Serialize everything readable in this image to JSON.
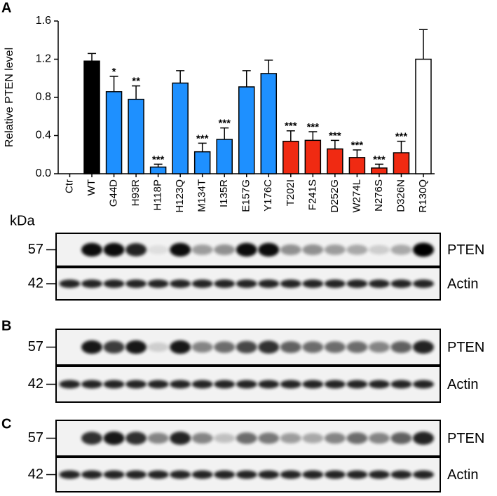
{
  "chart_data": {
    "type": "bar",
    "ylabel": "Relative PTEN level",
    "categories": [
      "Ctr",
      "WT",
      "G44D",
      "H93R",
      "H118P",
      "H123Q",
      "M134T",
      "I135R",
      "E157G",
      "Y176C",
      "T202I",
      "F241S",
      "D252G",
      "W274L",
      "N276S",
      "D326N",
      "R130Q"
    ],
    "values": [
      0,
      1.18,
      0.86,
      0.78,
      0.07,
      0.95,
      0.23,
      0.36,
      0.91,
      1.05,
      0.34,
      0.35,
      0.26,
      0.17,
      0.06,
      0.22,
      1.2
    ],
    "errors": [
      null,
      0.08,
      0.16,
      0.14,
      0.03,
      0.13,
      0.09,
      0.12,
      0.17,
      0.14,
      0.11,
      0.09,
      0.09,
      0.08,
      0.04,
      0.12,
      0.31
    ],
    "colors": [
      "#000000",
      "#000000",
      "#1e90ff",
      "#1e90ff",
      "#1e90ff",
      "#1e90ff",
      "#1e90ff",
      "#1e90ff",
      "#1e90ff",
      "#1e90ff",
      "#f02a12",
      "#f02a12",
      "#f02a12",
      "#f02a12",
      "#f02a12",
      "#f02a12",
      "#ffffff"
    ],
    "annotations": [
      null,
      null,
      "*",
      "**",
      "***",
      null,
      "***",
      "***",
      null,
      null,
      "***",
      "***",
      "***",
      "***",
      "***",
      "***",
      null
    ],
    "ylim": [
      0,
      1.6
    ],
    "yticks": [
      {
        "value": 0,
        "label": "0.0"
      },
      0.4,
      0.8,
      1.2,
      1.6
    ]
  },
  "panel_labels": [
    "A",
    "B",
    "C"
  ],
  "kda_label": "kDa",
  "blots": [
    {
      "rows": [
        {
          "marker": "57",
          "protein": "PTEN"
        },
        {
          "marker": "42",
          "protein": "Actin"
        }
      ]
    },
    {
      "rows": [
        {
          "marker": "57",
          "protein": "PTEN"
        },
        {
          "marker": "42",
          "protein": "Actin"
        }
      ]
    },
    {
      "rows": [
        {
          "marker": "57",
          "protein": "PTEN"
        },
        {
          "marker": "42",
          "protein": "Actin"
        }
      ]
    }
  ]
}
